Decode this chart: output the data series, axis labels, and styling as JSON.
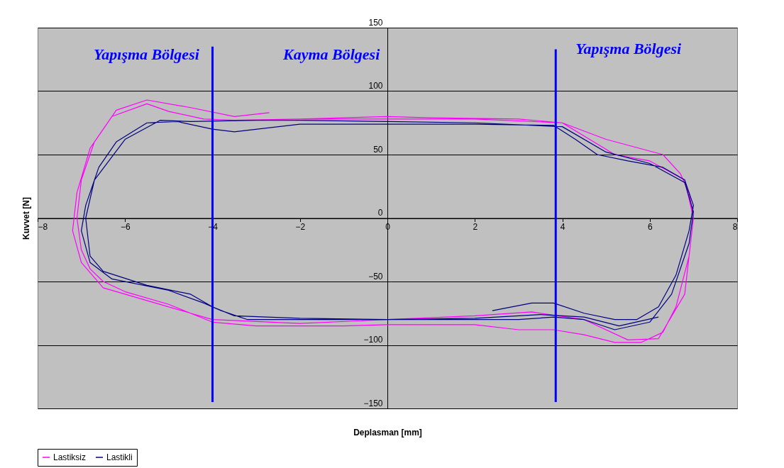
{
  "chart_data": {
    "type": "line",
    "xlabel": "Deplasman [mm]",
    "ylabel": "Kuvvet [N]",
    "xlim": [
      -8,
      8
    ],
    "xticks": [
      -8,
      -6,
      -4,
      -2,
      0,
      2,
      4,
      6,
      8
    ],
    "ylim": [
      -150,
      150
    ],
    "yticks": [
      -150,
      -100,
      -50,
      0,
      50,
      100,
      150
    ],
    "grid": "y",
    "legend": "bottom",
    "marker": "none",
    "line_style": "solid",
    "annotations": [
      "Yapışma Bölgesi",
      "Kayma Bölgesi",
      "Yapışma Bölgesi"
    ],
    "series": [
      {
        "name": "Lastiksiz",
        "color": "#ff00ff",
        "x": [
          -2.7,
          -3.5,
          -4.5,
          -5.5,
          -6.2,
          -6.7,
          -7.0,
          -7.1,
          -7.0,
          -6.8,
          -6.5,
          -6.0,
          -5.0,
          -4.0,
          -3.0,
          -1.0,
          0,
          2,
          3,
          3.8,
          4.5,
          5.2,
          5.8,
          6.3,
          6.6,
          6.9,
          7.0,
          6.9,
          6.7,
          6.3,
          5.0,
          4.0,
          3.0,
          1.0,
          0,
          -2.0,
          -3.5,
          -4.2,
          -5.0,
          -5.5,
          -6.3,
          -6.8,
          -7.1,
          -7.2,
          -7.0,
          -6.5,
          -5.5,
          -4.5,
          -4.0,
          -2.0,
          0,
          2,
          3.3,
          4.5,
          5.5,
          6.2,
          6.8,
          7.0,
          6.8,
          6.0,
          5.2,
          4.0,
          2.0,
          0,
          -2.0
        ],
        "values": [
          83,
          80,
          87,
          93,
          85,
          60,
          30,
          0,
          -25,
          -40,
          -50,
          -58,
          -68,
          -82,
          -85,
          -85,
          -84,
          -84,
          -88,
          -88,
          -92,
          -98,
          -98,
          -90,
          -70,
          -30,
          0,
          20,
          35,
          50,
          62,
          75,
          78,
          79,
          80,
          78,
          77,
          78,
          84,
          90,
          80,
          55,
          20,
          -10,
          -35,
          -55,
          -65,
          -75,
          -80,
          -83,
          -80,
          -77,
          -74,
          -80,
          -96,
          -95,
          -60,
          0,
          30,
          45,
          50,
          75,
          78,
          78,
          78
        ]
      },
      {
        "name": "Lastikli",
        "color": "#000080",
        "x": [
          2.4,
          3.3,
          3.8,
          4.5,
          5.2,
          5.7,
          6.2,
          6.6,
          6.9,
          7.0,
          6.8,
          6.3,
          5.5,
          4.8,
          4.3,
          3.8,
          2,
          0,
          -2,
          -3.5,
          -4.0,
          -4.8,
          -5.5,
          -6.2,
          -6.6,
          -6.9,
          -7.0,
          -6.8,
          -6.3,
          -5.0,
          -4.2,
          -3.8,
          -3.2,
          -1,
          1,
          3,
          3.8,
          4.5,
          5.2,
          6.0,
          6.5,
          6.9,
          7.0,
          6.8,
          6.0,
          5.0,
          4.0,
          2,
          0,
          -2,
          -3,
          -4.5,
          -5.2,
          -6.0,
          -6.7,
          -6.9,
          -6.8,
          -6.5,
          -5.5,
          -4.5,
          -4.0,
          -3.5,
          -2,
          0,
          2,
          3.5,
          4.5,
          5.3,
          6.2
        ],
        "values": [
          -73,
          -67,
          -67,
          -75,
          -80,
          -80,
          -70,
          -45,
          -10,
          10,
          30,
          40,
          45,
          50,
          62,
          73,
          74,
          74,
          74,
          68,
          70,
          76,
          75,
          60,
          40,
          10,
          -10,
          -35,
          -48,
          -57,
          -67,
          -73,
          -80,
          -80,
          -80,
          -80,
          -78,
          -80,
          -88,
          -82,
          -60,
          -20,
          5,
          28,
          43,
          52,
          72,
          75,
          76,
          77,
          77,
          76,
          77,
          62,
          30,
          0,
          -30,
          -42,
          -53,
          -60,
          -70,
          -77,
          -79,
          -80,
          -79,
          -76,
          -78,
          -85,
          -78
        ]
      },
      {
        "type": "line",
        "color": "#0000ff",
        "x": [
          -4,
          -4
        ],
        "values": [
          135,
          -145
        ]
      },
      {
        "type": "line",
        "color": "#0000ff",
        "x": [
          3.85,
          3.85
        ],
        "values": [
          133,
          -145
        ]
      }
    ]
  }
}
